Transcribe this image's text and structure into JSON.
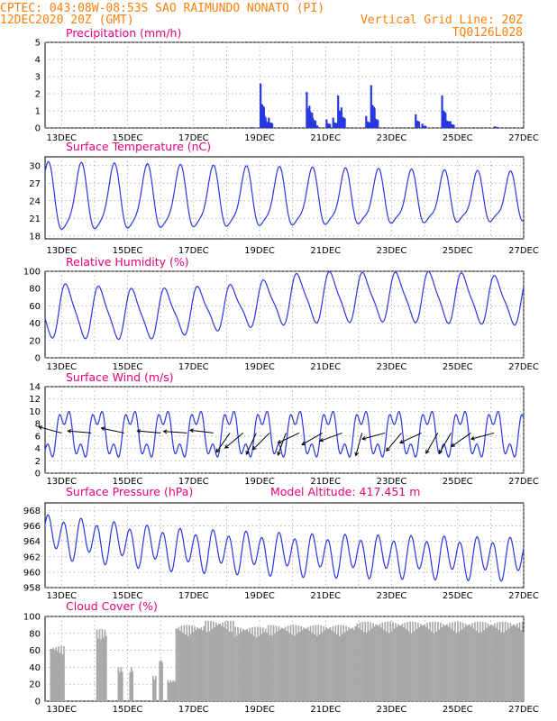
{
  "header": {
    "line1": "CPTEC:   043:08W-08:53S  SAO RAIMUNDO NONATO (PI)",
    "line2": "12DEC2020 20Z (GMT)",
    "grid_note": "Vertical Grid Line: 20Z",
    "code": "TQ0126L028"
  },
  "colors": {
    "header": "#ff7f0e",
    "title": "#e6007e",
    "series": "#2838e0",
    "cloud": "#a8a8a8",
    "wind": "#000000"
  },
  "chart_data": [
    {
      "id": "precip",
      "type": "bar",
      "title": "Precipitation (mm/h)",
      "x_axis": {
        "unit": "days from 12DEC2020 20Z",
        "range": [
          0,
          14.5
        ],
        "tick_labels": [
          "13DEC",
          "15DEC",
          "17DEC",
          "19DEC",
          "21DEC",
          "23DEC",
          "25DEC",
          "27DEC"
        ]
      },
      "ylim": [
        0,
        5
      ],
      "yticks": [
        0,
        1,
        2,
        3,
        4,
        5
      ],
      "grid": true,
      "events": [
        {
          "x": 6.25,
          "v": 0.05
        },
        {
          "x": 6.5,
          "v": 2.6
        },
        {
          "x": 6.55,
          "v": 1.3
        },
        {
          "x": 6.62,
          "v": 0.7
        },
        {
          "x": 6.75,
          "v": 0.6
        },
        {
          "x": 7.9,
          "v": 2.1
        },
        {
          "x": 7.98,
          "v": 1.3
        },
        {
          "x": 8.06,
          "v": 0.9
        },
        {
          "x": 8.12,
          "v": 0.3
        },
        {
          "x": 8.5,
          "v": 0.5
        },
        {
          "x": 8.7,
          "v": 0.6
        },
        {
          "x": 8.85,
          "v": 1.9
        },
        {
          "x": 8.95,
          "v": 1.2
        },
        {
          "x": 9.7,
          "v": 0.7
        },
        {
          "x": 9.85,
          "v": 2.5
        },
        {
          "x": 9.95,
          "v": 1.0
        },
        {
          "x": 11.2,
          "v": 0.8
        },
        {
          "x": 11.4,
          "v": 0.25
        },
        {
          "x": 12.0,
          "v": 1.9
        },
        {
          "x": 12.1,
          "v": 0.8
        },
        {
          "x": 12.25,
          "v": 0.4
        },
        {
          "x": 13.6,
          "v": 0.1
        }
      ]
    },
    {
      "id": "temp",
      "type": "line",
      "title": "Surface Temperature (nC)",
      "ylim": [
        17.5,
        31.5
      ],
      "yticks": [
        18,
        21,
        24,
        27,
        30
      ],
      "grid": true,
      "x_axis": {
        "range": [
          0,
          14.5
        ],
        "tick_labels": [
          "13DEC",
          "15DEC",
          "17DEC",
          "19DEC",
          "21DEC",
          "23DEC",
          "25DEC",
          "27DEC"
        ]
      },
      "series": [
        {
          "mean": 24,
          "amp": 5.6,
          "phase_days": 0.83,
          "trend_days_to_amp": [
            [
              0,
              1.0
            ],
            [
              7,
              0.85
            ],
            [
              14.5,
              0.7
            ]
          ]
        }
      ]
    },
    {
      "id": "rh",
      "type": "line",
      "title": "Relative Humidity (%)",
      "ylim": [
        0,
        100
      ],
      "yticks": [
        0,
        20,
        40,
        60,
        80,
        100
      ],
      "grid": true,
      "x_axis": {
        "range": [
          0,
          14.5
        ],
        "tick_labels": [
          "13DEC",
          "15DEC",
          "17DEC",
          "19DEC",
          "21DEC",
          "23DEC",
          "25DEC",
          "27DEC"
        ]
      },
      "series": [
        {
          "mean_points": [
            [
              0,
              55
            ],
            [
              3,
              50
            ],
            [
              6,
              60
            ],
            [
              8,
              70
            ],
            [
              10,
              70
            ],
            [
              12,
              70
            ],
            [
              14.5,
              65
            ]
          ],
          "amp_points": [
            [
              0,
              30
            ],
            [
              3,
              27
            ],
            [
              6,
              23
            ],
            [
              8,
              28
            ],
            [
              10,
              26
            ],
            [
              12,
              28
            ],
            [
              14.5,
              25
            ]
          ],
          "phase_days": 0.42
        }
      ]
    },
    {
      "id": "wind",
      "type": "line",
      "title": "Surface Wind (m/s)",
      "ylim": [
        0,
        14
      ],
      "yticks": [
        0,
        2,
        4,
        6,
        8,
        10,
        12,
        14
      ],
      "grid": true,
      "x_axis": {
        "range": [
          0,
          14.5
        ],
        "tick_labels": [
          "13DEC",
          "15DEC",
          "17DEC",
          "19DEC",
          "21DEC",
          "23DEC",
          "25DEC",
          "27DEC"
        ]
      },
      "series": [
        {
          "mean": 6.3,
          "amp": 3.2,
          "phase_days": 0.35
        }
      ],
      "arrow_days": [
        0.5,
        1.4,
        2.4,
        3.5,
        4.3,
        5.1,
        5.6,
        6.0,
        6.4,
        6.8,
        7.3,
        7.7,
        8.4,
        9.0,
        9.6,
        10.3,
        10.8,
        11.4,
        11.9,
        12.3,
        12.9,
        13.6
      ],
      "arrow_angles": [
        165,
        175,
        168,
        175,
        176,
        173,
        235,
        220,
        245,
        225,
        250,
        205,
        210,
        200,
        255,
        195,
        230,
        205,
        240,
        240,
        215,
        195
      ]
    },
    {
      "id": "pressure",
      "type": "line",
      "title": "Surface Pressure (hPa)",
      "note": "Model Altitude: 417.451 m",
      "ylim": [
        958,
        969
      ],
      "yticks": [
        958,
        960,
        962,
        964,
        966,
        968
      ],
      "grid": true,
      "x_axis": {
        "range": [
          0,
          14.5
        ],
        "tick_labels": [
          "13DEC",
          "15DEC",
          "17DEC",
          "19DEC",
          "21DEC",
          "23DEC",
          "25DEC",
          "27DEC"
        ]
      },
      "series": [
        {
          "mean_points": [
            [
              0,
              964.8
            ],
            [
              4,
              963
            ],
            [
              8,
              962.3
            ],
            [
              14.5,
              961.8
            ]
          ],
          "amp": 2.3
        }
      ]
    },
    {
      "id": "cloud",
      "type": "bar",
      "title": "Cloud Cover (%)",
      "ylim": [
        0,
        100
      ],
      "yticks": [
        0,
        20,
        40,
        60,
        80,
        100
      ],
      "grid": true,
      "x_axis": {
        "range": [
          0,
          14.5
        ],
        "tick_labels": [
          "13DEC",
          "15DEC",
          "17DEC",
          "19DEC",
          "21DEC",
          "23DEC",
          "25DEC",
          "27DEC"
        ]
      },
      "segments": [
        {
          "x0": 0.15,
          "x1": 0.55,
          "v": 65
        },
        {
          "x0": 1.55,
          "x1": 1.85,
          "v": 85
        },
        {
          "x0": 2.2,
          "x1": 2.35,
          "v": 40
        },
        {
          "x0": 2.55,
          "x1": 2.65,
          "v": 40
        },
        {
          "x0": 3.25,
          "x1": 3.35,
          "v": 30
        },
        {
          "x0": 3.45,
          "x1": 3.55,
          "v": 50
        },
        {
          "x0": 3.7,
          "x1": 3.95,
          "v": 25
        },
        {
          "x0": 3.95,
          "x1": 4.8,
          "v": 90
        },
        {
          "x0": 4.8,
          "x1": 5.7,
          "v": 95
        },
        {
          "x0": 5.7,
          "x1": 6.7,
          "v": 88
        },
        {
          "x0": 6.7,
          "x1": 9.4,
          "v": 90
        },
        {
          "x0": 9.4,
          "x1": 14.5,
          "v": 94
        }
      ]
    }
  ]
}
